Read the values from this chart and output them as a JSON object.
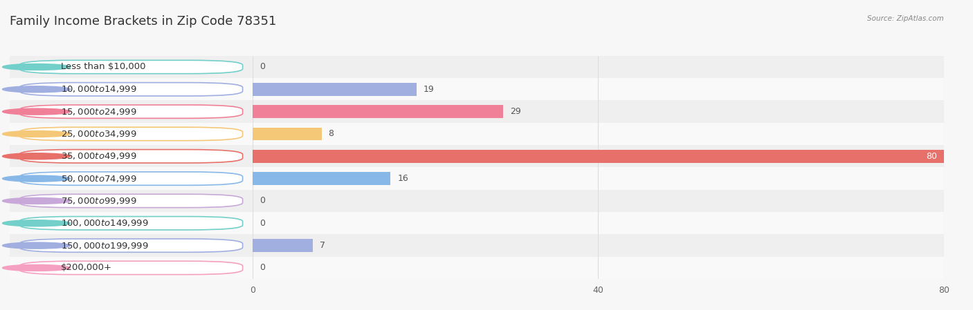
{
  "title": "Family Income Brackets in Zip Code 78351",
  "source": "Source: ZipAtlas.com",
  "categories": [
    "Less than $10,000",
    "$10,000 to $14,999",
    "$15,000 to $24,999",
    "$25,000 to $34,999",
    "$35,000 to $49,999",
    "$50,000 to $74,999",
    "$75,000 to $99,999",
    "$100,000 to $149,999",
    "$150,000 to $199,999",
    "$200,000+"
  ],
  "values": [
    0,
    19,
    29,
    8,
    80,
    16,
    0,
    0,
    7,
    0
  ],
  "bar_colors": [
    "#72cfc9",
    "#a0aee0",
    "#f08098",
    "#f5c878",
    "#e8706a",
    "#88b8e8",
    "#c8a8d8",
    "#72cfc9",
    "#a0aee0",
    "#f5a0c0"
  ],
  "xlim_max": 80,
  "xticks": [
    0,
    40,
    80
  ],
  "background_color": "#f7f7f7",
  "row_bg_even": "#efefef",
  "row_bg_odd": "#f9f9f9",
  "bar_height": 0.58,
  "title_fontsize": 13,
  "label_fontsize": 9.5,
  "value_fontsize": 9,
  "tick_fontsize": 9
}
